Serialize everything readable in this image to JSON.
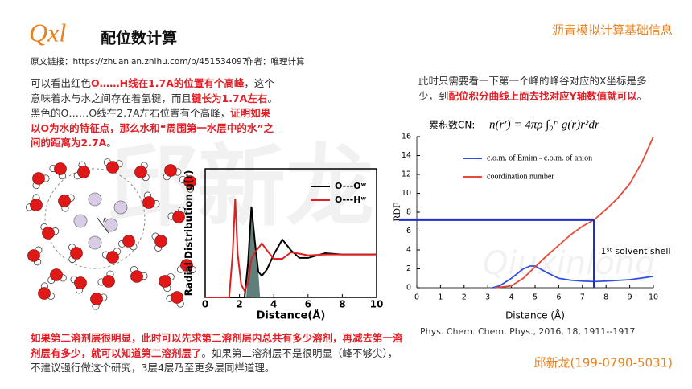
{
  "header": {
    "logo": "Qxl",
    "title": "配位数计算",
    "tagline": "沥青模拟计算基础信息",
    "source": "原文链接：https://zhuanlan.zhihu.com/p/451534097",
    "author": "作者：唯理计算"
  },
  "paragraphs": [
    {
      "segments": [
        {
          "text": "可以看出红色",
          "color": "#333333"
        },
        {
          "text": "O……H线在1.7A的位置有个高峰",
          "color": "#e41e26",
          "bold": true
        },
        {
          "text": "，这个意味着水与水之间存在着氢键，而且",
          "color": "#333333"
        },
        {
          "text": "键长为1.7A左右",
          "color": "#e41e26",
          "bold": true
        },
        {
          "text": "。黑色的O……O线在2.7A左右位置有个高峰，",
          "color": "#333333"
        },
        {
          "text": "证明如果以O为水的特征点，那么水和“周围第一水层中的水”之间的距离为2.7A",
          "color": "#e41e26",
          "bold": true
        },
        {
          "text": "。",
          "color": "#333333"
        }
      ]
    },
    {
      "segments": [
        {
          "text": "此时只需要看一下第一个峰的峰谷对应的X坐标是多少，到",
          "color": "#333333"
        },
        {
          "text": "配位积分曲线上面去找对应Y轴数值就可以",
          "color": "#e41e26",
          "bold": true
        },
        {
          "text": "。",
          "color": "#333333"
        }
      ]
    },
    {
      "segments": [
        {
          "text": "如果第二溶剂层很明显，此时可以先求第二溶剂层内总共有多少溶剂，再减去第一溶剂层有多少，就可以知道第二溶剂层了",
          "color": "#e41e26",
          "bold": true
        },
        {
          "text": "。如果第二溶剂层不是很明显（峰不够尖），不建议强行做这个研究，3层4层乃至更多层同样道理。",
          "color": "#333333"
        }
      ]
    }
  ],
  "charts": [
    {
      "type": "line",
      "xlabel": "Distance(Å)",
      "ylabel": "Radial Distribution g(r)",
      "frame": "box",
      "xlim": [
        0,
        10
      ],
      "xticks": [
        0,
        2,
        4,
        6,
        8,
        10
      ],
      "ylim": [
        0,
        3
      ],
      "legend": "upper right",
      "shaded_range": [
        2.4,
        3.2
      ],
      "series": [
        {
          "name": "O---Oʷ",
          "color": "#000000",
          "x": [
            0,
            2.3,
            2.5,
            2.7,
            2.9,
            3.1,
            3.3,
            3.6,
            4.0,
            4.5,
            5.0,
            5.5,
            6,
            7,
            8,
            9,
            10
          ],
          "values": [
            0,
            0,
            0.8,
            2.12,
            1.3,
            0.6,
            0.5,
            0.65,
            1.0,
            1.35,
            1.1,
            0.92,
            0.92,
            1.03,
            1.0,
            1.0,
            1.0
          ]
        },
        {
          "name": "O---Hʷ",
          "color": "#e02020",
          "x": [
            0,
            1.4,
            1.6,
            1.75,
            1.9,
            2.1,
            2.3,
            2.5,
            2.7,
            2.9,
            3.1,
            3.3,
            3.6,
            4.0,
            4.5,
            5.0,
            5.5,
            6,
            7,
            8,
            9,
            10
          ],
          "values": [
            0,
            0,
            1.0,
            2.29,
            1.0,
            0.3,
            0.15,
            0.35,
            0.9,
            1.05,
            1.15,
            1.26,
            1.1,
            0.9,
            0.9,
            1.05,
            1.02,
            0.98,
            1.0,
            1.0,
            1.0,
            1.0
          ]
        }
      ]
    },
    {
      "type": "line",
      "xlabel": "Distance (Å)",
      "ylabel": "RDF",
      "frame": "axes",
      "xlim": [
        0,
        10
      ],
      "xticks": [
        0,
        1,
        2,
        3,
        4,
        5,
        6,
        7,
        8,
        9,
        10
      ],
      "ylim": [
        0,
        16
      ],
      "yticks": [
        0,
        2,
        4,
        6,
        8,
        10,
        12,
        14,
        16
      ],
      "legend": "upper left",
      "formula_label": "累积数CN:",
      "formula": "n(r′) = 4πρ ∫₀ʳ′ g(r)r²dr",
      "annotation": {
        "text": "1ˢᵗ solvent shell",
        "x": 7.5,
        "y": 7.2,
        "color": "#1a2fd0"
      },
      "series": [
        {
          "name": "c.o.m. of Emim - c.o.m. of anion",
          "color": "#3050e0",
          "x": [
            3.2,
            3.5,
            4,
            4.5,
            4.8,
            5.0,
            5.5,
            6,
            6.5,
            7,
            7.5,
            8,
            9,
            10
          ],
          "values": [
            0,
            0.2,
            1.0,
            2.0,
            2.3,
            2.3,
            1.6,
            1.0,
            0.8,
            0.7,
            0.65,
            0.7,
            0.85,
            1.2
          ]
        },
        {
          "name": "coordination number",
          "color": "#e84a3a",
          "x": [
            3.3,
            4,
            4.5,
            5,
            5.5,
            6,
            6.5,
            7,
            7.5,
            8,
            8.5,
            9,
            9.5,
            10
          ],
          "values": [
            0,
            0.2,
            1.0,
            2.2,
            3.4,
            4.5,
            5.6,
            6.5,
            7.2,
            8.3,
            9.5,
            11,
            13.2,
            16
          ]
        }
      ]
    }
  ],
  "citation": "Phys. Chem. Chem. Phys., 2016, 18, 1911-‐1917",
  "contact": "邱新龙(199-0790-5031)",
  "watermark": [
    "邱新龙",
    "Qiuxinlong"
  ]
}
